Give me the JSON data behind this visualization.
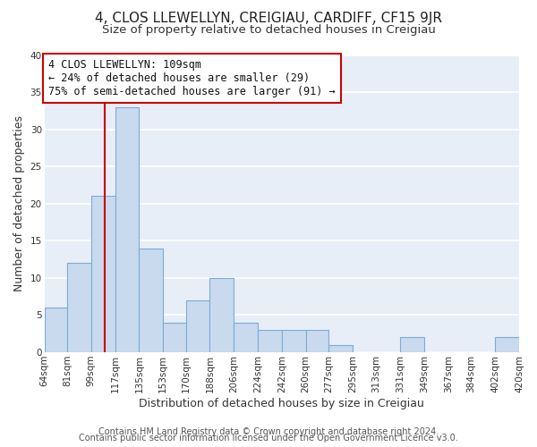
{
  "title": "4, CLOS LLEWELLYN, CREIGIAU, CARDIFF, CF15 9JR",
  "subtitle": "Size of property relative to detached houses in Creigiau",
  "xlabel": "Distribution of detached houses by size in Creigiau",
  "ylabel": "Number of detached properties",
  "bin_edges": [
    64,
    81,
    99,
    117,
    135,
    153,
    170,
    188,
    206,
    224,
    242,
    260,
    277,
    295,
    313,
    331,
    349,
    367,
    384,
    402,
    420
  ],
  "bar_heights": [
    6,
    12,
    21,
    33,
    14,
    4,
    7,
    10,
    4,
    3,
    3,
    3,
    1,
    0,
    0,
    2,
    0,
    0,
    0,
    2
  ],
  "bar_color": "#c9d9ee",
  "bar_edgecolor": "#7aadd4",
  "vline_x": 109,
  "vline_color": "#cc0000",
  "annotation_text": "4 CLOS LLEWELLYN: 109sqm\n← 24% of detached houses are smaller (29)\n75% of semi-detached houses are larger (91) →",
  "annotation_box_edgecolor": "#cc0000",
  "annotation_box_facecolor": "#ffffff",
  "ylim": [
    0,
    40
  ],
  "yticks": [
    0,
    5,
    10,
    15,
    20,
    25,
    30,
    35,
    40
  ],
  "tick_labels": [
    "64sqm",
    "81sqm",
    "99sqm",
    "117sqm",
    "135sqm",
    "153sqm",
    "170sqm",
    "188sqm",
    "206sqm",
    "224sqm",
    "242sqm",
    "260sqm",
    "277sqm",
    "295sqm",
    "313sqm",
    "331sqm",
    "349sqm",
    "367sqm",
    "384sqm",
    "402sqm",
    "420sqm"
  ],
  "footer_line1": "Contains HM Land Registry data © Crown copyright and database right 2024.",
  "footer_line2": "Contains public sector information licensed under the Open Government Licence v3.0.",
  "background_color": "#ffffff",
  "plot_bg_color": "#e8eef8",
  "grid_color": "#ffffff",
  "title_fontsize": 11,
  "subtitle_fontsize": 9.5,
  "axis_label_fontsize": 9,
  "tick_fontsize": 7.5,
  "annotation_fontsize": 8.5,
  "footer_fontsize": 7
}
